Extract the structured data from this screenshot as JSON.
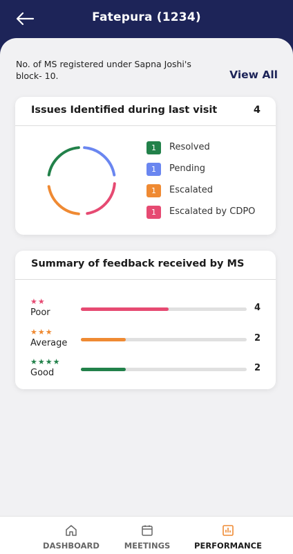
{
  "header": {
    "title": "Fatepura (1234)",
    "back_icon": "arrow-left-icon"
  },
  "info": {
    "text": "No. of MS registered under Sapna Joshi's block- 10.",
    "view_all_label": "View All"
  },
  "issues": {
    "title": "Issues Identified during last visit",
    "total": "4",
    "items": [
      {
        "count": "1",
        "label": "Resolved",
        "color": "#22814a"
      },
      {
        "count": "1",
        "label": "Pending",
        "color": "#6a86f0"
      },
      {
        "count": "1",
        "label": "Escalated",
        "color": "#ef8a33"
      },
      {
        "count": "1",
        "label": "Escalated by CDPO",
        "color": "#e64a72"
      }
    ]
  },
  "feedback": {
    "title": "Summary of feedback received by MS",
    "rows": [
      {
        "stars": "★★",
        "label": "Poor",
        "count": "4",
        "fill_fraction": 0.53,
        "color": "#e64a72"
      },
      {
        "stars": "★★★",
        "label": "Average",
        "count": "2",
        "fill_fraction": 0.27,
        "color": "#ef8a33"
      },
      {
        "stars": "★★★★",
        "label": "Good",
        "count": "2",
        "fill_fraction": 0.27,
        "color": "#22814a"
      }
    ]
  },
  "nav": {
    "items": [
      {
        "label": "DASHBOARD",
        "icon": "home-icon",
        "active": false
      },
      {
        "label": "MEETINGS",
        "icon": "calendar-icon",
        "active": false
      },
      {
        "label": "PERFORMANCE",
        "icon": "bar-chart-icon",
        "active": true
      }
    ],
    "active_color": "#ef8a33"
  }
}
